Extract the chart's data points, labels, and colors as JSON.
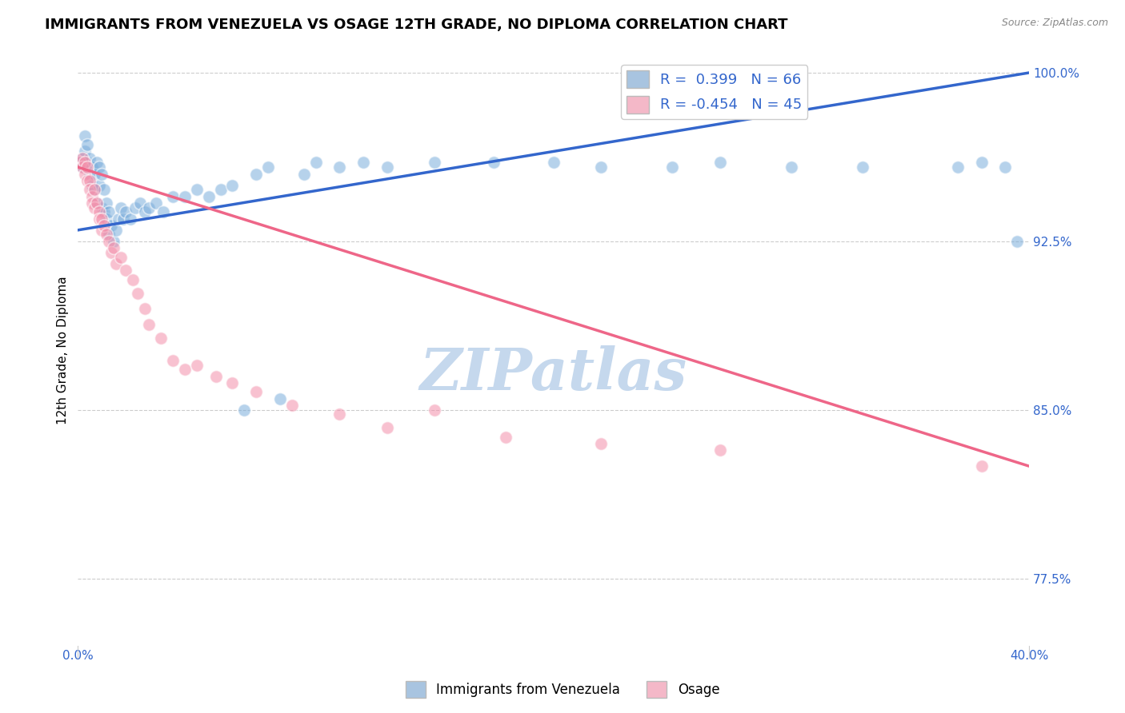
{
  "title": "IMMIGRANTS FROM VENEZUELA VS OSAGE 12TH GRADE, NO DIPLOMA CORRELATION CHART",
  "source": "Source: ZipAtlas.com",
  "xlim": [
    0.0,
    0.4
  ],
  "ylim": [
    0.745,
    1.008
  ],
  "ylabel": "12th Grade, No Diploma",
  "watermark": "ZIPatlas",
  "blue_scatter_x": [
    0.001,
    0.002,
    0.002,
    0.003,
    0.003,
    0.004,
    0.004,
    0.005,
    0.005,
    0.006,
    0.006,
    0.007,
    0.007,
    0.008,
    0.008,
    0.009,
    0.009,
    0.01,
    0.01,
    0.011,
    0.011,
    0.012,
    0.012,
    0.013,
    0.013,
    0.014,
    0.015,
    0.016,
    0.017,
    0.018,
    0.019,
    0.02,
    0.022,
    0.024,
    0.026,
    0.028,
    0.03,
    0.033,
    0.036,
    0.04,
    0.045,
    0.05,
    0.055,
    0.06,
    0.065,
    0.075,
    0.08,
    0.095,
    0.11,
    0.13,
    0.15,
    0.175,
    0.2,
    0.22,
    0.25,
    0.27,
    0.3,
    0.33,
    0.37,
    0.38,
    0.39,
    0.395,
    0.07,
    0.085,
    0.1,
    0.12
  ],
  "blue_scatter_y": [
    0.96,
    0.962,
    0.958,
    0.965,
    0.972,
    0.968,
    0.96,
    0.955,
    0.962,
    0.958,
    0.95,
    0.955,
    0.948,
    0.96,
    0.942,
    0.958,
    0.95,
    0.955,
    0.94,
    0.948,
    0.938,
    0.942,
    0.935,
    0.938,
    0.928,
    0.932,
    0.925,
    0.93,
    0.935,
    0.94,
    0.935,
    0.938,
    0.935,
    0.94,
    0.942,
    0.938,
    0.94,
    0.942,
    0.938,
    0.945,
    0.945,
    0.948,
    0.945,
    0.948,
    0.95,
    0.955,
    0.958,
    0.955,
    0.958,
    0.958,
    0.96,
    0.96,
    0.96,
    0.958,
    0.958,
    0.96,
    0.958,
    0.958,
    0.958,
    0.96,
    0.958,
    0.925,
    0.85,
    0.855,
    0.96,
    0.96
  ],
  "pink_scatter_x": [
    0.001,
    0.002,
    0.002,
    0.003,
    0.003,
    0.004,
    0.004,
    0.005,
    0.005,
    0.006,
    0.006,
    0.007,
    0.007,
    0.008,
    0.009,
    0.009,
    0.01,
    0.01,
    0.011,
    0.012,
    0.013,
    0.014,
    0.015,
    0.016,
    0.018,
    0.02,
    0.023,
    0.025,
    0.028,
    0.03,
    0.035,
    0.04,
    0.045,
    0.05,
    0.058,
    0.065,
    0.075,
    0.09,
    0.11,
    0.13,
    0.15,
    0.18,
    0.22,
    0.27,
    0.38
  ],
  "pink_scatter_y": [
    0.96,
    0.962,
    0.958,
    0.96,
    0.955,
    0.958,
    0.952,
    0.952,
    0.948,
    0.945,
    0.942,
    0.948,
    0.94,
    0.942,
    0.938,
    0.935,
    0.935,
    0.93,
    0.932,
    0.928,
    0.925,
    0.92,
    0.922,
    0.915,
    0.918,
    0.912,
    0.908,
    0.902,
    0.895,
    0.888,
    0.882,
    0.872,
    0.868,
    0.87,
    0.865,
    0.862,
    0.858,
    0.852,
    0.848,
    0.842,
    0.85,
    0.838,
    0.835,
    0.832,
    0.825
  ],
  "blue_line_x": [
    0.0,
    0.4
  ],
  "blue_line_y": [
    0.93,
    1.0
  ],
  "pink_line_x": [
    0.0,
    0.4
  ],
  "pink_line_y": [
    0.958,
    0.825
  ],
  "blue_color": "#7aaddb",
  "pink_color": "#f48faa",
  "blue_line_color": "#3366cc",
  "pink_line_color": "#ee6688",
  "background_color": "#ffffff",
  "grid_color": "#cccccc",
  "tick_label_color": "#3366cc",
  "watermark_color": "#c5d8ed",
  "watermark_fontsize": 52,
  "title_fontsize": 13,
  "legend_box_color_blue": "#a8c4e0",
  "legend_box_color_pink": "#f4b8c8"
}
